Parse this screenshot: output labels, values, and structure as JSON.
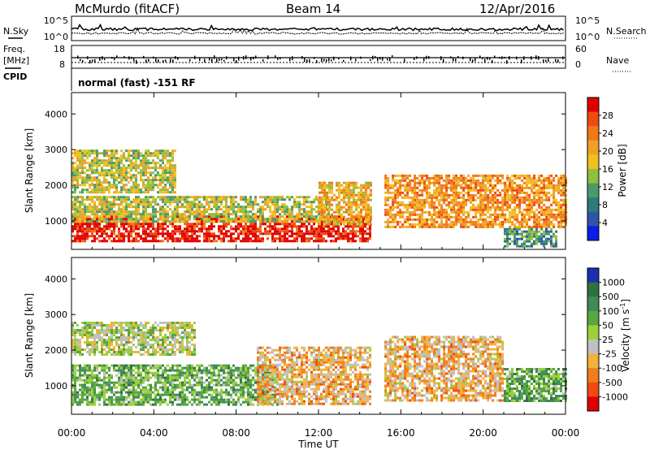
{
  "header": {
    "station": "McMurdo (fitACF)",
    "beam": "Beam 14",
    "date": "12/Apr/2016"
  },
  "noise_panel": {
    "left_label": "N.Sky",
    "right_label": "N.Search",
    "y_top": "10^5",
    "y_bottom": "10^0"
  },
  "freq_panel": {
    "left_label_line1": "Freq.",
    "left_label_line2": "[MHz]",
    "left_tick_top": "18",
    "left_tick_bottom": "8",
    "right_label": "Nave",
    "right_tick_top": "60",
    "right_tick_bottom": "0"
  },
  "cpid": {
    "label": "CPID",
    "text": "normal (fast) -151 RF"
  },
  "x_axis": {
    "label": "Time UT",
    "ticks": [
      "00:00",
      "04:00",
      "08:00",
      "12:00",
      "16:00",
      "20:00",
      "00:00"
    ]
  },
  "colorbars": {
    "power": {
      "label": "Power [dB]",
      "ticks": [
        "28",
        "24",
        "20",
        "16",
        "12",
        "8",
        "4"
      ],
      "colors": [
        "#0a1ee6",
        "#2f55a8",
        "#2e7b7c",
        "#4c9a6c",
        "#8fbf3f",
        "#f0c020",
        "#f0a028",
        "#f07818",
        "#f04a12",
        "#e00000"
      ]
    },
    "velocity": {
      "label": "Velocity [m s",
      "label_sup": "-1",
      "label_close": "]",
      "ticks": [
        "1000",
        "500",
        "100",
        "50",
        "25",
        "-25",
        "-100",
        "-500",
        "-1000"
      ],
      "colors": [
        "#1a2fb0",
        "#2f7040",
        "#3e8a5a",
        "#5aa640",
        "#9ccf3a",
        "#c0c0c0",
        "#f3b23a",
        "#f07e1a",
        "#f04a12",
        "#e00000"
      ]
    }
  },
  "chart_data": [
    {
      "type": "heatmap",
      "title": "Power",
      "xlabel": "Time UT",
      "ylabel": "Slant Range [km]",
      "x_range_hours": [
        0,
        24
      ],
      "ylim": [
        200,
        4600
      ],
      "y_ticks": [
        1000,
        2000,
        3000,
        4000
      ],
      "colorbar_label": "Power [dB]",
      "colorbar_range": [
        0,
        32
      ],
      "regions": [
        {
          "t": [
            0,
            14.5
          ],
          "range": [
            450,
            1150
          ],
          "value": 30
        },
        {
          "t": [
            0,
            12.5
          ],
          "range": [
            1000,
            1700
          ],
          "value": 16
        },
        {
          "t": [
            0,
            5
          ],
          "range": [
            1800,
            3000
          ],
          "value": 16
        },
        {
          "t": [
            12,
            14.6
          ],
          "range": [
            900,
            2100
          ],
          "value": 20
        },
        {
          "t": [
            15.2,
            24
          ],
          "range": [
            800,
            2300
          ],
          "value": 22
        },
        {
          "t": [
            21,
            23.5
          ],
          "range": [
            300,
            800
          ],
          "value": 10
        }
      ]
    },
    {
      "type": "heatmap",
      "title": "Velocity",
      "xlabel": "Time UT",
      "ylabel": "Slant Range [km]",
      "x_range_hours": [
        0,
        24
      ],
      "ylim": [
        200,
        4600
      ],
      "y_ticks": [
        1000,
        2000,
        3000,
        4000
      ],
      "colorbar_label": "Velocity [m s-1]",
      "colorbar_range": [
        -1000,
        1000
      ],
      "regions": [
        {
          "t": [
            0,
            10
          ],
          "range": [
            500,
            1600
          ],
          "value": 300
        },
        {
          "t": [
            0,
            6
          ],
          "range": [
            1900,
            2800
          ],
          "value": 0
        },
        {
          "t": [
            9,
            14.5
          ],
          "range": [
            500,
            2100
          ],
          "value": -300
        },
        {
          "t": [
            15.2,
            21
          ],
          "range": [
            600,
            2400
          ],
          "value": -300
        },
        {
          "t": [
            21,
            24
          ],
          "range": [
            600,
            1500
          ],
          "value": 300
        }
      ]
    }
  ]
}
